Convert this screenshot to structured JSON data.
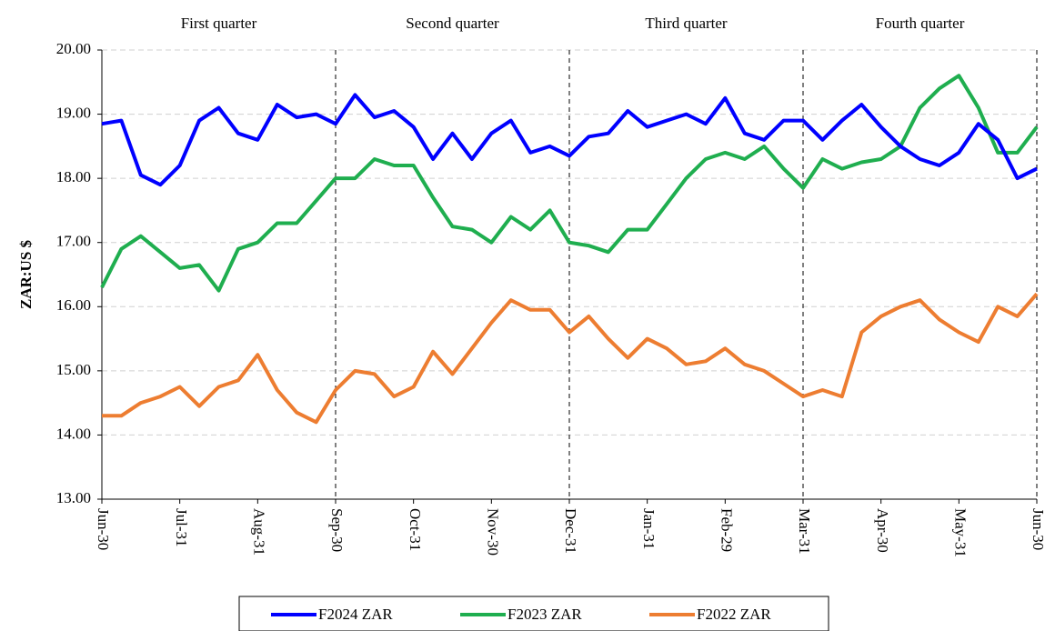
{
  "chart_data": {
    "type": "line",
    "y_label": "ZAR:US $",
    "annotations": [
      "First quarter",
      "Second quarter",
      "Third quarter",
      "Fourth quarter"
    ],
    "categories": [
      "Jun-30",
      null,
      null,
      null,
      "Jul-31",
      null,
      null,
      null,
      "Aug-31",
      null,
      null,
      null,
      "Sep-30",
      null,
      null,
      null,
      "Oct-31",
      null,
      null,
      null,
      "Nov-30",
      null,
      null,
      null,
      "Dec-31",
      null,
      null,
      null,
      "Jan-31",
      null,
      null,
      null,
      "Feb-29",
      null,
      null,
      null,
      "Mar-31",
      null,
      null,
      null,
      "Apr-30",
      null,
      null,
      null,
      "May-31",
      null,
      null,
      null,
      "Jun-30"
    ],
    "series": [
      {
        "name": "F2024 ZAR",
        "color": "#0000ff",
        "values": [
          18.85,
          18.9,
          18.05,
          17.9,
          18.2,
          18.9,
          19.1,
          18.7,
          18.6,
          19.15,
          18.95,
          19.0,
          18.85,
          19.3,
          18.95,
          19.05,
          18.8,
          18.3,
          18.7,
          18.3,
          18.7,
          18.9,
          18.4,
          18.5,
          18.35,
          18.65,
          18.7,
          19.05,
          18.8,
          18.9,
          19.0,
          18.85,
          19.25,
          18.7,
          18.6,
          18.9,
          18.9,
          18.6,
          18.9,
          19.15,
          18.8,
          18.5,
          18.3,
          18.2,
          18.4,
          18.85,
          18.6,
          18.0,
          18.15
        ]
      },
      {
        "name": "F2023 ZAR",
        "color": "#1fae4f",
        "values": [
          16.3,
          16.9,
          17.1,
          16.85,
          16.6,
          16.65,
          16.25,
          16.9,
          17.0,
          17.3,
          17.3,
          17.65,
          18.0,
          18.0,
          18.3,
          18.2,
          18.2,
          17.7,
          17.25,
          17.2,
          17.0,
          17.4,
          17.2,
          17.5,
          17.0,
          16.95,
          16.85,
          17.2,
          17.2,
          17.6,
          18.0,
          18.3,
          18.4,
          18.3,
          18.5,
          18.15,
          17.85,
          18.3,
          18.15,
          18.25,
          18.3,
          18.5,
          19.1,
          19.4,
          19.6,
          19.1,
          18.4,
          18.4,
          18.8
        ]
      },
      {
        "name": "F2022 ZAR",
        "color": "#ed7d31",
        "values": [
          14.3,
          14.3,
          14.5,
          14.6,
          14.75,
          14.45,
          14.75,
          14.85,
          15.25,
          14.7,
          14.35,
          14.2,
          14.7,
          15.0,
          14.95,
          14.6,
          14.75,
          15.3,
          14.95,
          15.35,
          15.75,
          16.1,
          15.95,
          15.95,
          15.6,
          15.85,
          15.5,
          15.2,
          15.5,
          15.35,
          15.1,
          15.15,
          15.35,
          15.1,
          15.0,
          14.8,
          14.6,
          14.7,
          14.6,
          15.6,
          15.85,
          16.0,
          16.1,
          15.8,
          15.6,
          15.45,
          16.0,
          15.85,
          16.2
        ]
      }
    ],
    "ylim": [
      13,
      20
    ],
    "yticks": [
      {
        "value": 13,
        "label": "13.00"
      },
      {
        "value": 14,
        "label": "14.00"
      },
      {
        "value": 15,
        "label": "15.00"
      },
      {
        "value": 16,
        "label": "16.00"
      },
      {
        "value": 17,
        "label": "17.00"
      },
      {
        "value": 18,
        "label": "18.00"
      },
      {
        "value": 19,
        "label": "19.00"
      },
      {
        "value": 20,
        "label": "20.00"
      }
    ],
    "grid": true,
    "legend": "bottom"
  }
}
